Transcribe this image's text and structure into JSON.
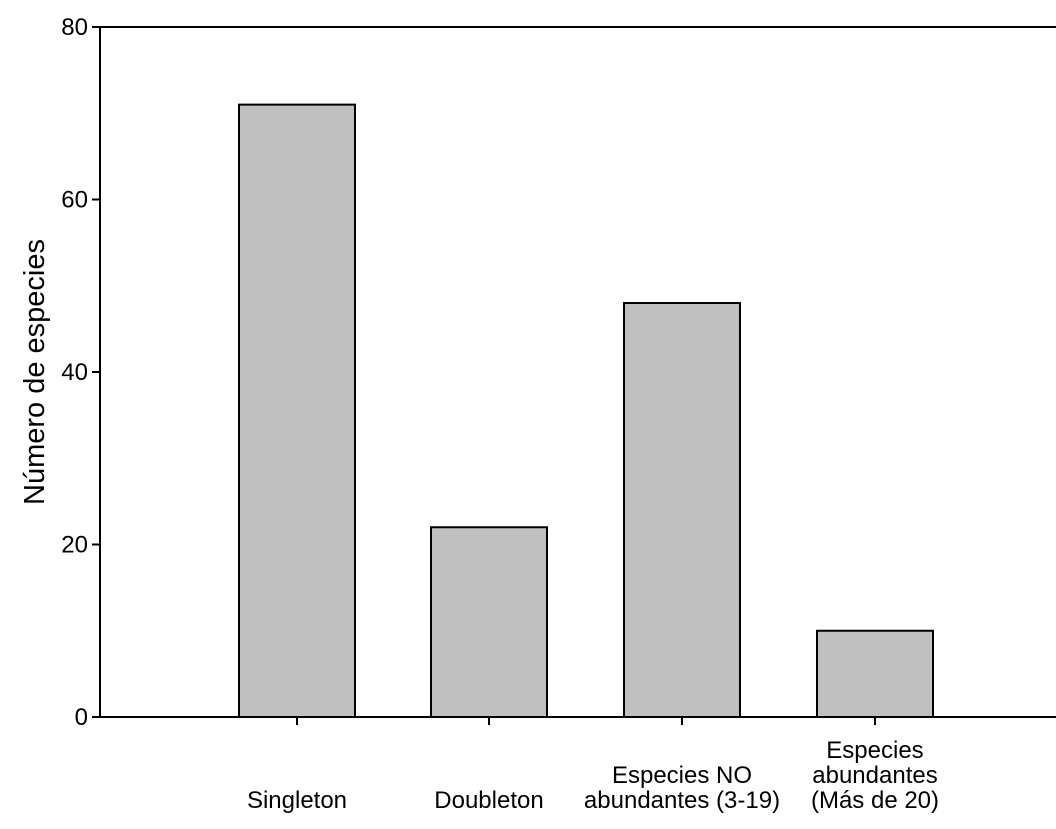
{
  "chart_data": {
    "type": "bar",
    "title": "",
    "xlabel": "",
    "ylabel": "Número de especies",
    "ylim": [
      0,
      80
    ],
    "yticks": [
      0,
      20,
      40,
      60,
      80
    ],
    "grid": false,
    "categories": [
      [
        "Singleton"
      ],
      [
        "Doubleton"
      ],
      [
        "Especies NO",
        "abundantes (3-19)"
      ],
      [
        "Especies",
        "abundantes",
        "(Más de 20)"
      ]
    ],
    "values": [
      71,
      22,
      48,
      10
    ],
    "bar_color": "#c0c0c0",
    "edge_color": "#000000"
  }
}
